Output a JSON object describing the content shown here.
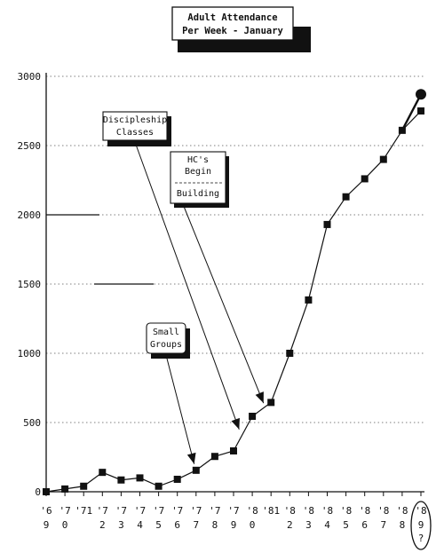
{
  "chart_data": {
    "type": "line",
    "title_lines": [
      "Adult Attendance",
      "Per Week - January"
    ],
    "xlabel": "",
    "ylabel": "",
    "ylim": [
      0,
      3000
    ],
    "yticks": [
      0,
      500,
      1000,
      1500,
      2000,
      2500,
      3000
    ],
    "ytick_labels": [
      "0",
      "500",
      "1000",
      "1500",
      "2000",
      "2500",
      "3000"
    ],
    "grid": "horizontal dotted",
    "x_tick_labels": [
      {
        "top": "'6",
        "bottom": "9"
      },
      {
        "top": "'7",
        "bottom": "0"
      },
      {
        "top": "'71",
        "bottom": ""
      },
      {
        "top": "'7",
        "bottom": "2"
      },
      {
        "top": "'7",
        "bottom": "3"
      },
      {
        "top": "'7",
        "bottom": "4"
      },
      {
        "top": "'7",
        "bottom": "5"
      },
      {
        "top": "'7",
        "bottom": "6"
      },
      {
        "top": "'7",
        "bottom": "7"
      },
      {
        "top": "'7",
        "bottom": "8"
      },
      {
        "top": "'7",
        "bottom": "9"
      },
      {
        "top": "'8",
        "bottom": "0"
      },
      {
        "top": "'81",
        "bottom": ""
      },
      {
        "top": "'8",
        "bottom": "2"
      },
      {
        "top": "'8",
        "bottom": "3"
      },
      {
        "top": "'8",
        "bottom": "4"
      },
      {
        "top": "'8",
        "bottom": "5"
      },
      {
        "top": "'8",
        "bottom": "6"
      },
      {
        "top": "'8",
        "bottom": "7"
      },
      {
        "top": "'8",
        "bottom": "8"
      },
      {
        "top": "'8",
        "bottom": "9",
        "extra": "?"
      }
    ],
    "x": [
      1969,
      1970,
      1971,
      1972,
      1973,
      1974,
      1975,
      1976,
      1977,
      1978,
      1979,
      1980,
      1981,
      1982,
      1983,
      1984,
      1985,
      1986,
      1987,
      1988,
      1989
    ],
    "series": [
      {
        "values": [
          0,
          20,
          40,
          140,
          85,
          100,
          40,
          90,
          155,
          255,
          295,
          545,
          645,
          1000,
          1385,
          1930,
          2130,
          2260,
          2400,
          2610,
          2750
        ]
      }
    ],
    "projected_point": {
      "x": 1989,
      "y": 2870
    },
    "annotations": [
      {
        "id": "discipleship",
        "lines": [
          "Discipleship",
          "Classes"
        ],
        "target_x": 1979.3,
        "target_y": 450
      },
      {
        "id": "hcs",
        "lines": [
          "HC's",
          "Begin"
        ],
        "sub_lines": [
          "Building"
        ],
        "target_x": 1980.6,
        "target_y": 640
      },
      {
        "id": "small-groups",
        "lines": [
          "Small",
          "Groups"
        ],
        "target_x": 1976.9,
        "target_y": 200
      }
    ]
  }
}
